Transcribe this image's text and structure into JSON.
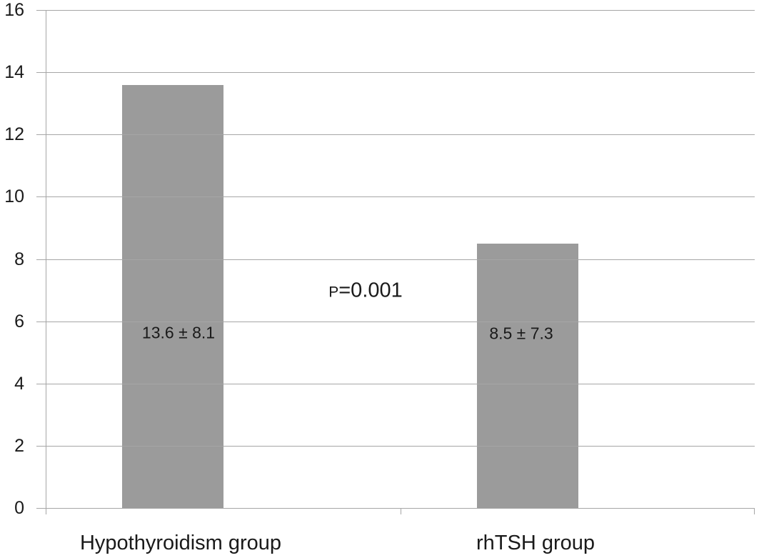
{
  "chart_data": {
    "type": "bar",
    "title": "",
    "xlabel": "",
    "ylabel": "",
    "categories": [
      "Hypothyroidism group",
      "rhTSH group"
    ],
    "values": [
      13.6,
      8.5
    ],
    "bar_labels": [
      "13.6 ± 8.1",
      "8.5 ± 7.3"
    ],
    "series_stats": [
      {
        "group": "Hypothyroidism group",
        "mean": 13.6,
        "sd": 8.1
      },
      {
        "group": "rhTSH group",
        "mean": 8.5,
        "sd": 7.3
      }
    ],
    "annotation": {
      "text": "P=0.001",
      "p": "P",
      "rest": "=0.001"
    },
    "ylim": [
      0,
      16
    ],
    "yticks": [
      0,
      2,
      4,
      6,
      8,
      10,
      12,
      14,
      16
    ],
    "grid": true,
    "legend": false,
    "colors": {
      "bar": "#9b9b9b",
      "gridline": "#a6a6a6",
      "text": "#1a1a1a",
      "background": "#ffffff"
    }
  }
}
